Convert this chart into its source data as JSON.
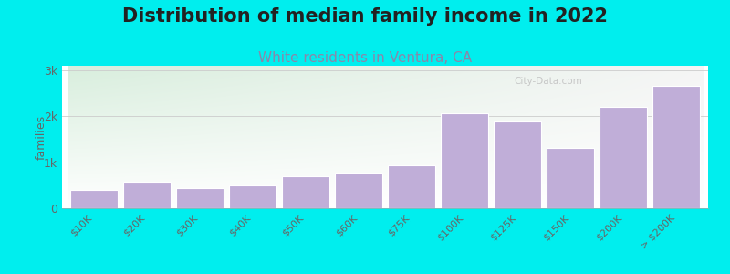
{
  "title": "Distribution of median family income in 2022",
  "subtitle": "White residents in Ventura, CA",
  "title_fontsize": 15,
  "subtitle_fontsize": 11,
  "subtitle_color": "#8888aa",
  "ylabel": "families",
  "background_color": "#00eeee",
  "plot_bg_top_left": "#d8eedd",
  "plot_bg_top_right": "#f5f5f5",
  "plot_bg_bottom": "#ffffff",
  "bar_color": "#c0aed8",
  "bar_edge_color": "#ffffff",
  "categories": [
    "$10K",
    "$20K",
    "$30K",
    "$40K",
    "$50K",
    "$60K",
    "$75K",
    "$100K",
    "$125K",
    "$150K",
    "$200K",
    "> $200K"
  ],
  "values": [
    390,
    580,
    430,
    490,
    690,
    780,
    940,
    2060,
    1880,
    1320,
    2200,
    2660
  ],
  "ylim": [
    0,
    3100
  ],
  "yticks": [
    0,
    1000,
    2000,
    3000
  ],
  "ytick_labels": [
    "0",
    "1k",
    "2k",
    "3k"
  ],
  "grid_color": "#cccccc",
  "watermark": "City-Data.com",
  "watermark_color": "#c0c0c0"
}
